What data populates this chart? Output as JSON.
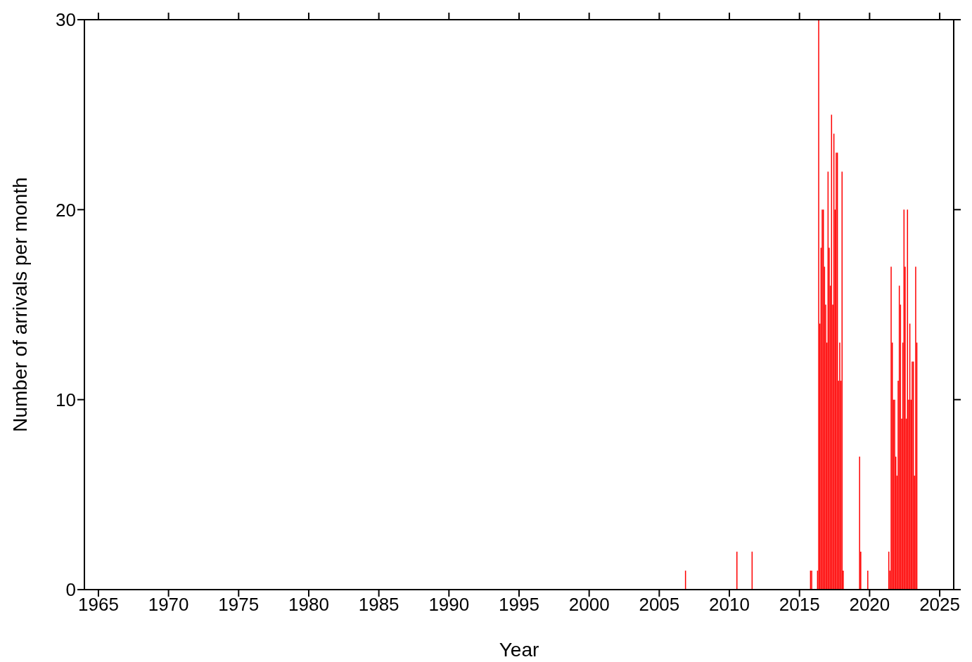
{
  "chart_data": {
    "type": "bar",
    "xlabel": "Year",
    "ylabel": "Number of arrivals per month",
    "x": [
      "2006-11",
      "2010-07",
      "2011-08",
      "2015-10",
      "2015-11",
      "2016-04",
      "2016-05",
      "2016-06",
      "2016-07",
      "2016-08",
      "2016-09",
      "2016-10",
      "2016-11",
      "2016-12",
      "2017-01",
      "2017-02",
      "2017-03",
      "2017-04",
      "2017-05",
      "2017-06",
      "2017-07",
      "2017-08",
      "2017-09",
      "2017-10",
      "2017-11",
      "2017-12",
      "2018-01",
      "2018-02",
      "2019-04",
      "2019-05",
      "2019-11",
      "2021-05",
      "2021-06",
      "2021-07",
      "2021-08",
      "2021-09",
      "2021-10",
      "2021-11",
      "2021-12",
      "2022-01",
      "2022-02",
      "2022-03",
      "2022-04",
      "2022-05",
      "2022-06",
      "2022-07",
      "2022-08",
      "2022-09",
      "2022-10",
      "2022-11",
      "2022-12",
      "2023-01",
      "2023-02",
      "2023-03",
      "2023-04",
      "2023-05"
    ],
    "values": [
      1,
      2,
      2,
      1,
      1,
      1,
      30,
      14,
      18,
      20,
      20,
      17,
      15,
      13,
      22,
      18,
      16,
      25,
      15,
      24,
      20,
      23,
      23,
      11,
      13,
      11,
      22,
      1,
      7,
      2,
      1,
      2,
      1,
      17,
      13,
      10,
      10,
      7,
      6,
      11,
      16,
      15,
      9,
      13,
      20,
      17,
      9,
      20,
      10,
      14,
      10,
      12,
      12,
      6,
      17,
      13
    ],
    "color": "#ff0000",
    "xlim": [
      "1964",
      "2026"
    ],
    "xticks": [
      "1965",
      "1970",
      "1975",
      "1980",
      "1985",
      "1990",
      "1995",
      "2000",
      "2005",
      "2010",
      "2015",
      "2020",
      "2025"
    ],
    "ylim": [
      0,
      30
    ],
    "yticks": [
      0,
      10,
      20,
      30
    ],
    "grid": false,
    "legend": false
  }
}
